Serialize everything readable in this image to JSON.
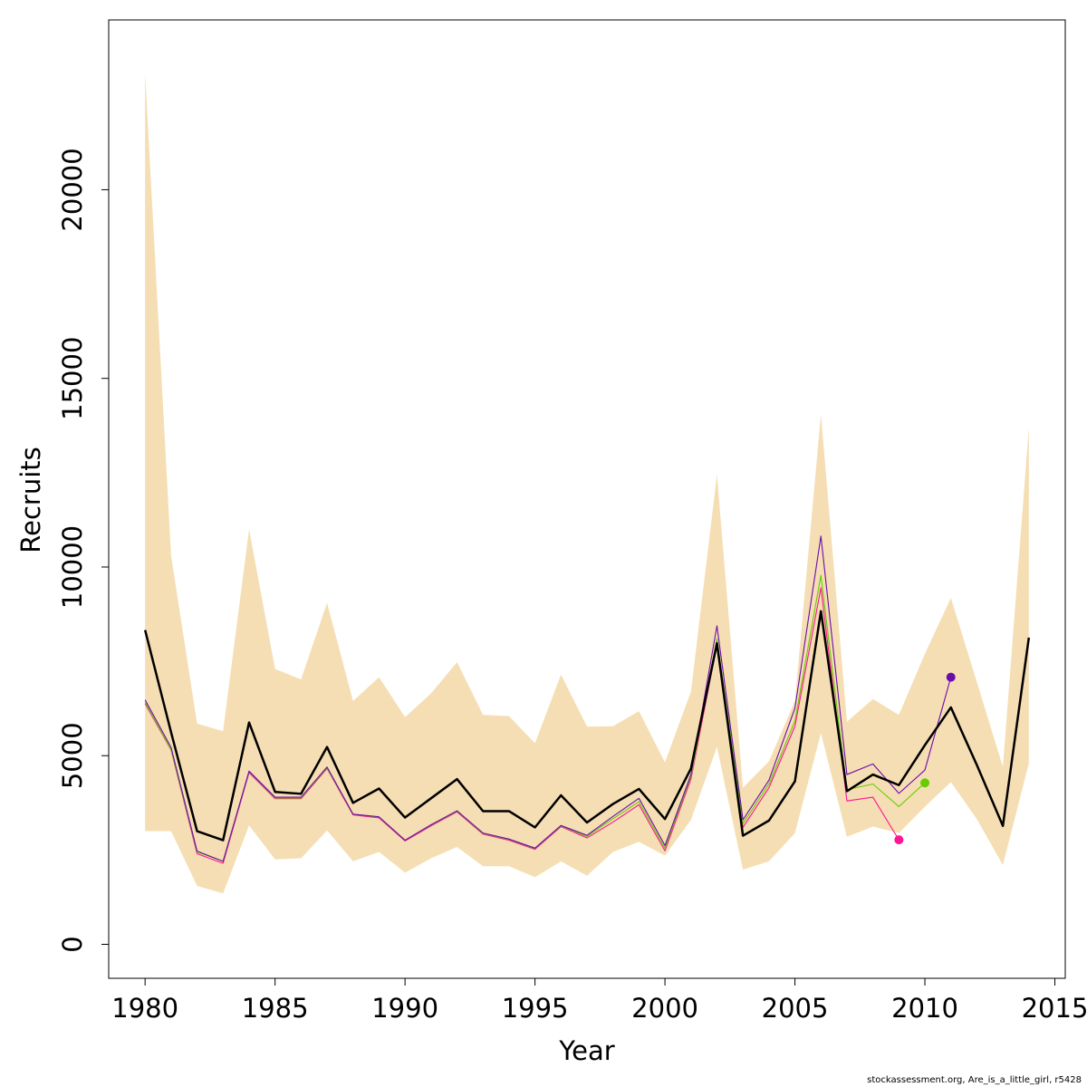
{
  "chart_data": {
    "type": "line",
    "xlabel": "Year",
    "ylabel": "Recruits",
    "xlim": [
      1978.6,
      2015.4
    ],
    "ylim": [
      -900,
      24500
    ],
    "xticks": [
      1980,
      1985,
      1990,
      1995,
      2000,
      2005,
      2010,
      2015
    ],
    "yticks": [
      0,
      5000,
      10000,
      15000,
      20000
    ],
    "grid": false,
    "legend": "none",
    "ci_band": {
      "color": "#F5DEB3",
      "x": [
        1980,
        1981,
        1982,
        1983,
        1984,
        1985,
        1986,
        1987,
        1988,
        1989,
        1990,
        1991,
        1992,
        1993,
        1994,
        1995,
        1996,
        1997,
        1998,
        1999,
        2000,
        2001,
        2002,
        2003,
        2004,
        2005,
        2006,
        2007,
        2008,
        2009,
        2010,
        2011,
        2012,
        2013,
        2014
      ],
      "lower": [
        3000,
        3000,
        1550,
        1350,
        3150,
        2250,
        2280,
        3020,
        2200,
        2450,
        1900,
        2280,
        2580,
        2070,
        2070,
        1780,
        2200,
        1820,
        2450,
        2720,
        2350,
        3300,
        5230,
        1980,
        2200,
        2950,
        5600,
        2850,
        3120,
        2950,
        3650,
        4300,
        3320,
        2100,
        4800
      ],
      "upper": [
        23100,
        10300,
        5850,
        5650,
        11000,
        7300,
        7020,
        9050,
        6450,
        7080,
        6020,
        6650,
        7480,
        6080,
        6050,
        5330,
        7150,
        5770,
        5780,
        6180,
        4820,
        6700,
        12450,
        4150,
        4850,
        6450,
        14050,
        5900,
        6500,
        6080,
        7700,
        9180,
        6950,
        4700,
        13700
      ]
    },
    "series": [
      {
        "color": "#000000",
        "x": [
          1980,
          1981,
          1982,
          1983,
          1984,
          1985,
          1986,
          1987,
          1988,
          1989,
          1990,
          1991,
          1992,
          1993,
          1994,
          1995,
          1996,
          1997,
          1998,
          1999,
          2000,
          2001,
          2002,
          2003,
          2004,
          2005,
          2006,
          2007,
          2008,
          2009,
          2010,
          2011,
          2012,
          2013,
          2014
        ],
        "values": [
          8330,
          5620,
          3000,
          2760,
          5880,
          4040,
          3990,
          5230,
          3750,
          4130,
          3360,
          3870,
          4380,
          3530,
          3530,
          3100,
          3950,
          3230,
          3720,
          4120,
          3320,
          4660,
          7980,
          2880,
          3280,
          4320,
          8830,
          4060,
          4500,
          4220,
          5280,
          6280,
          4750,
          3140,
          8130
        ]
      },
      {
        "color": "#6A0DAD",
        "end_point": true,
        "x": [
          1980,
          1981,
          1982,
          1983,
          1984,
          1985,
          1986,
          1987,
          1988,
          1989,
          1990,
          1991,
          1992,
          1993,
          1994,
          1995,
          1996,
          1997,
          1998,
          1999,
          2000,
          2001,
          2002,
          2003,
          2004,
          2005,
          2006,
          2007,
          2008,
          2009,
          2010,
          2011
        ],
        "values": [
          6480,
          5220,
          2470,
          2200,
          4590,
          3900,
          3900,
          4700,
          3450,
          3380,
          2760,
          3170,
          3540,
          2950,
          2790,
          2550,
          3150,
          2890,
          3390,
          3870,
          2620,
          4500,
          8440,
          3300,
          4350,
          6260,
          10820,
          4500,
          4780,
          4000,
          4620,
          7080
        ]
      },
      {
        "color": "#66CC00",
        "end_point": true,
        "x": [
          1980,
          1981,
          1982,
          1983,
          1984,
          1985,
          1986,
          1987,
          1988,
          1989,
          1990,
          1991,
          1992,
          1993,
          1994,
          1995,
          1996,
          1997,
          1998,
          1999,
          2000,
          2001,
          2002,
          2003,
          2004,
          2005,
          2006,
          2007,
          2008,
          2009,
          2010
        ],
        "values": [
          6420,
          5160,
          2450,
          2200,
          4580,
          3880,
          3880,
          4680,
          3450,
          3370,
          2760,
          3160,
          3530,
          2940,
          2780,
          2540,
          3140,
          2860,
          3330,
          3780,
          2550,
          4450,
          8100,
          3200,
          4250,
          5920,
          9780,
          4100,
          4250,
          3650,
          4280
        ]
      },
      {
        "color": "#FF1493",
        "end_point": true,
        "x": [
          1980,
          1981,
          1982,
          1983,
          1984,
          1985,
          1986,
          1987,
          1988,
          1989,
          1990,
          1991,
          1992,
          1993,
          1994,
          1995,
          1996,
          1997,
          1998,
          1999,
          2000,
          2001,
          2002,
          2003,
          2004,
          2005,
          2006,
          2007,
          2008,
          2009
        ],
        "values": [
          6380,
          5150,
          2400,
          2150,
          4550,
          3860,
          3860,
          4660,
          3430,
          3350,
          2740,
          3140,
          3510,
          2920,
          2760,
          2520,
          3120,
          2820,
          3240,
          3700,
          2480,
          4380,
          7950,
          3100,
          4150,
          5780,
          9450,
          3800,
          3900,
          2770
        ]
      }
    ]
  },
  "footer": {
    "credit": "stockassessment.org, Are_is_a_little_girl, r5428"
  }
}
